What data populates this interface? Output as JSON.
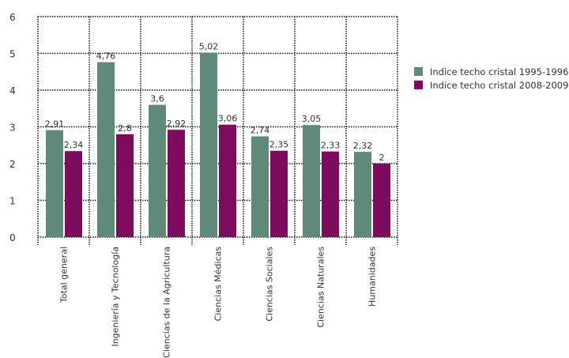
{
  "chart_data": {
    "type": "bar",
    "title": "",
    "xlabel": "",
    "ylabel": "",
    "ylim": [
      0,
      6
    ],
    "yticks": [
      "0",
      "1",
      "2",
      "3",
      "4",
      "5",
      "6"
    ],
    "grid": true,
    "legend_position": "right",
    "categories": [
      "Total general",
      "Ingeniería y Tecnología",
      "Ciencias de la Agricultura",
      "Ciencias Médicas",
      "Ciencias Sociales",
      "Ciencias Naturales",
      "Humanidades"
    ],
    "series": [
      {
        "name": "Indice techo cristal 1995-1996",
        "color": "#5f8a7a",
        "values": [
          2.91,
          4.76,
          3.6,
          5.02,
          2.74,
          3.05,
          2.32
        ],
        "labels": [
          "2,91",
          "4,76",
          "3,6",
          "5,02",
          "2,74",
          "3,05",
          "2,32"
        ]
      },
      {
        "name": "Indice techo cristal 2008-2009",
        "color": "#7d0b5e",
        "values": [
          2.34,
          2.8,
          2.92,
          3.06,
          2.35,
          2.33,
          2
        ],
        "labels": [
          "2,34",
          "2,8",
          "2,92",
          "3,06",
          "2,35",
          "2,33",
          "2"
        ]
      }
    ]
  }
}
